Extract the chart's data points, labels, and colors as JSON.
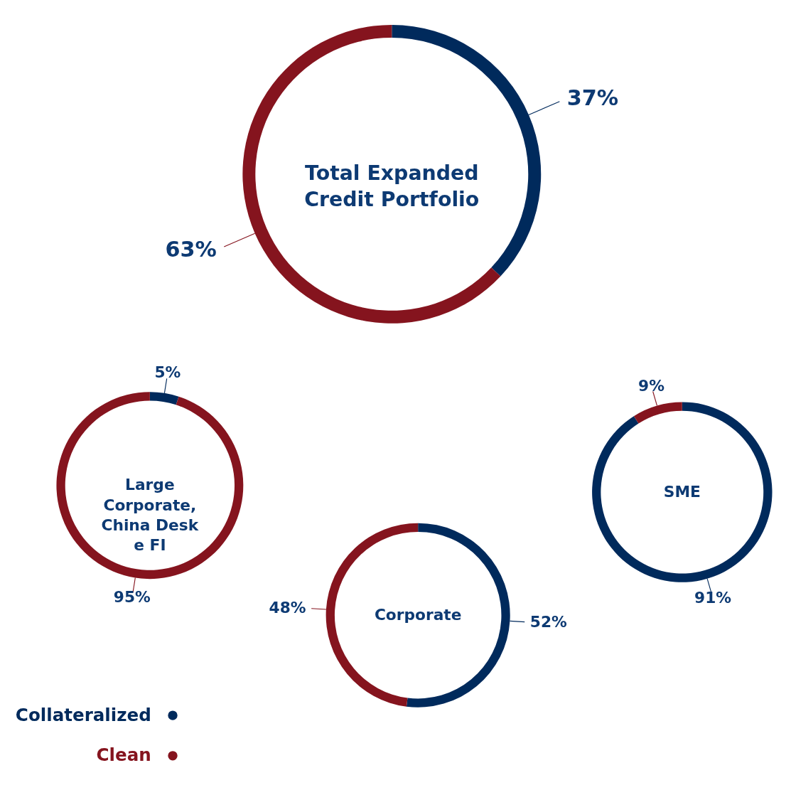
{
  "chart_data": [
    {
      "type": "donut",
      "title": "Total Expanded Credit Portfolio",
      "categories": [
        "Collateralized",
        "Clean"
      ],
      "values": [
        37,
        63
      ],
      "value_labels": [
        "37%",
        "63%"
      ],
      "colors": [
        "#002a5c",
        "#85141e"
      ],
      "legend": "bottom left"
    },
    {
      "type": "donut",
      "title": "Large Corporate, China Desk e FI",
      "categories": [
        null,
        null
      ],
      "values": [
        5,
        95
      ],
      "value_labels": [
        "5%",
        "95%"
      ],
      "colors": [
        "#002a5c",
        "#85141e"
      ]
    },
    {
      "type": "donut",
      "title": "Corporate",
      "categories": [
        null,
        null
      ],
      "values": [
        52,
        48
      ],
      "value_labels": [
        "52%",
        "48%"
      ],
      "colors": [
        "#002a5c",
        "#85141e"
      ]
    },
    {
      "type": "donut",
      "title": "SME",
      "categories": [
        null,
        null
      ],
      "values": [
        91,
        9
      ],
      "value_labels": [
        "91%",
        "9%"
      ],
      "colors": [
        "#002a5c",
        "#85141e"
      ]
    }
  ]
}
